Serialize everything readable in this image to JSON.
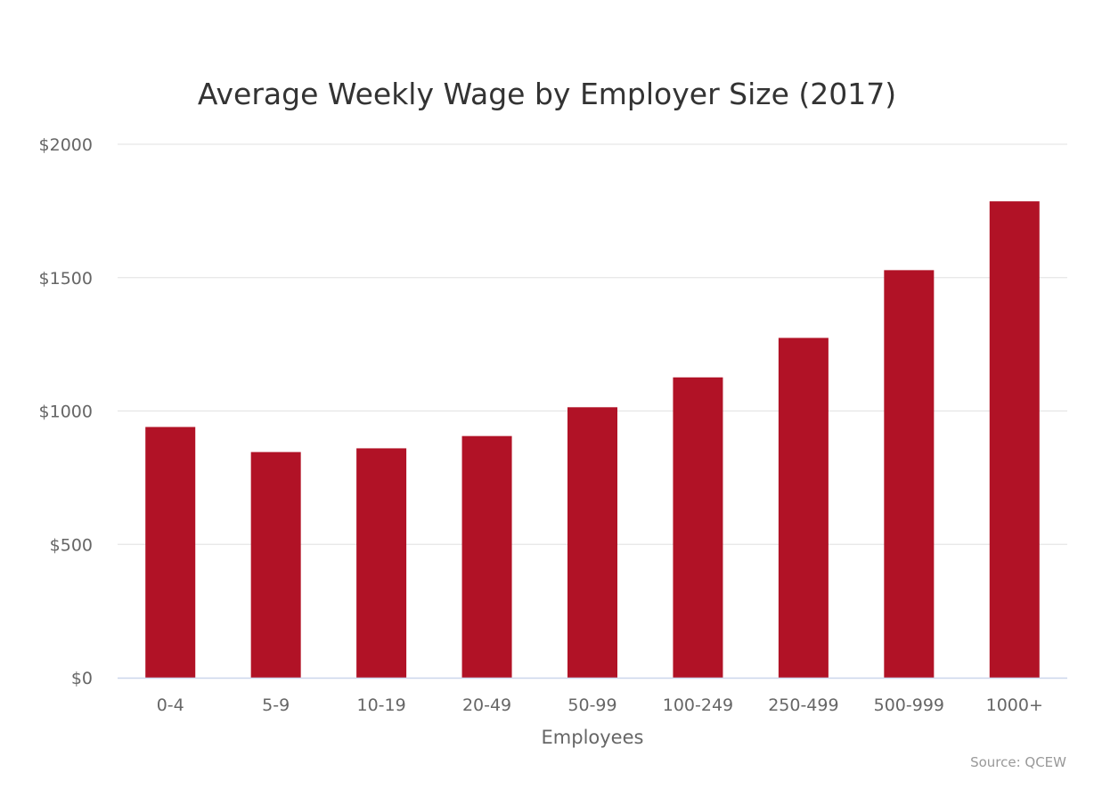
{
  "chart_data": {
    "type": "bar",
    "title": "Average Weekly Wage by Employer Size (2017)",
    "xlabel": "Employees",
    "ylabel": "",
    "categories": [
      "0-4",
      "5-9",
      "10-19",
      "20-49",
      "50-99",
      "100-249",
      "250-499",
      "500-999",
      "1000+"
    ],
    "series": [
      {
        "values": [
          940,
          846,
          860,
          906,
          1014,
          1126,
          1274,
          1528,
          1786
        ]
      }
    ],
    "ylim": [
      0,
      2000
    ],
    "y_ticks": [
      "$0",
      "$500",
      "$1000",
      "$1500",
      "$2000"
    ],
    "y_tick_values": [
      0,
      500,
      1000,
      1500,
      2000
    ],
    "grid": true,
    "legend": "none",
    "credits": "Source: QCEW",
    "colors": {
      "bar": "#b11226",
      "grid": "#e6e6e6",
      "axis_line": "#ccd6eb",
      "title": "#333333",
      "labels": "#666666",
      "credits": "#999999"
    }
  }
}
